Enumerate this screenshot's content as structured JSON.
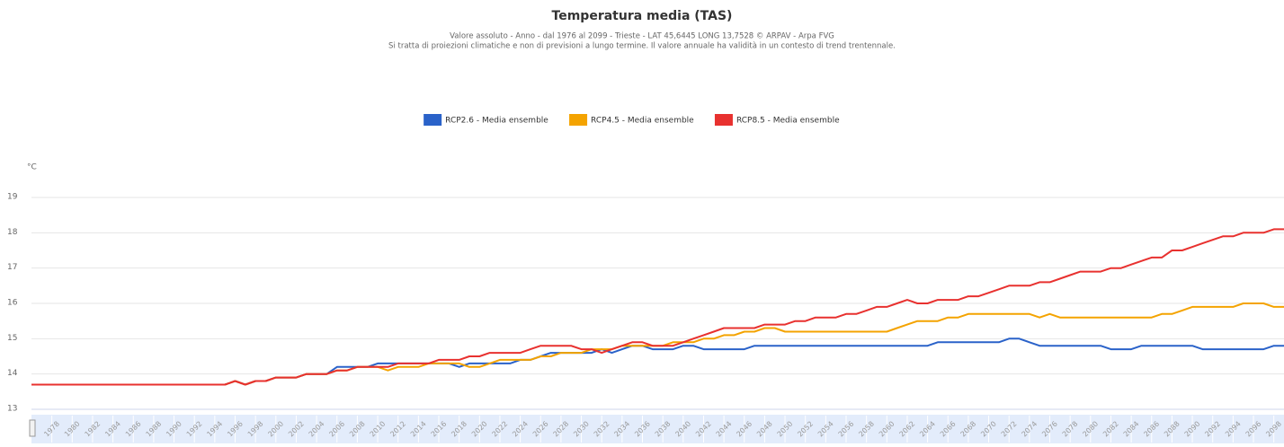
{
  "chart_data": {
    "type": "line",
    "title": "Temperatura media (TAS)",
    "subtitle": [
      "Valore assoluto  -  Anno  -  dal 1976 al 2099 - Trieste - LAT 45,6445 LONG 13,7528    © ARPAV - Arpa FVG",
      "Si tratta di proiezioni climatiche e non di previsioni a lungo termine. Il valore annuale ha validità in un contesto di trend trentennale."
    ],
    "y_label": "°C",
    "x": [
      1976,
      1977,
      1978,
      1979,
      1980,
      1981,
      1982,
      1983,
      1984,
      1985,
      1986,
      1987,
      1988,
      1989,
      1990,
      1991,
      1992,
      1993,
      1994,
      1995,
      1996,
      1997,
      1998,
      1999,
      2000,
      2001,
      2002,
      2003,
      2004,
      2005,
      2006,
      2007,
      2008,
      2009,
      2010,
      2011,
      2012,
      2013,
      2014,
      2015,
      2016,
      2017,
      2018,
      2019,
      2020,
      2021,
      2022,
      2023,
      2024,
      2025,
      2026,
      2027,
      2028,
      2029,
      2030,
      2031,
      2032,
      2033,
      2034,
      2035,
      2036,
      2037,
      2038,
      2039,
      2040,
      2041,
      2042,
      2043,
      2044,
      2045,
      2046,
      2047,
      2048,
      2049,
      2050,
      2051,
      2052,
      2053,
      2054,
      2055,
      2056,
      2057,
      2058,
      2059,
      2060,
      2061,
      2062,
      2063,
      2064,
      2065,
      2066,
      2067,
      2068,
      2069,
      2070,
      2071,
      2072,
      2073,
      2074,
      2075,
      2076,
      2077,
      2078,
      2079,
      2080,
      2081,
      2082,
      2083,
      2084,
      2085,
      2086,
      2087,
      2088,
      2089,
      2090,
      2091,
      2092,
      2093,
      2094,
      2095,
      2096,
      2097,
      2098,
      2099
    ],
    "series": [
      {
        "name": "RCP2.6 - Media ensemble",
        "color": "#2a62c9",
        "values": [
          13.7,
          13.7,
          13.7,
          13.7,
          13.7,
          13.7,
          13.7,
          13.7,
          13.7,
          13.7,
          13.7,
          13.7,
          13.7,
          13.7,
          13.7,
          13.7,
          13.7,
          13.7,
          13.7,
          13.7,
          13.8,
          13.7,
          13.8,
          13.8,
          13.9,
          13.9,
          13.9,
          14.0,
          14.0,
          14.0,
          14.2,
          14.2,
          14.2,
          14.2,
          14.3,
          14.3,
          14.3,
          14.3,
          14.3,
          14.3,
          14.3,
          14.3,
          14.2,
          14.3,
          14.3,
          14.3,
          14.3,
          14.3,
          14.4,
          14.4,
          14.5,
          14.6,
          14.6,
          14.6,
          14.6,
          14.6,
          14.7,
          14.6,
          14.7,
          14.8,
          14.8,
          14.7,
          14.7,
          14.7,
          14.8,
          14.8,
          14.7,
          14.7,
          14.7,
          14.7,
          14.7,
          14.8,
          14.8,
          14.8,
          14.8,
          14.8,
          14.8,
          14.8,
          14.8,
          14.8,
          14.8,
          14.8,
          14.8,
          14.8,
          14.8,
          14.8,
          14.8,
          14.8,
          14.8,
          14.9,
          14.9,
          14.9,
          14.9,
          14.9,
          14.9,
          14.9,
          15.0,
          15.0,
          14.9,
          14.8,
          14.8,
          14.8,
          14.8,
          14.8,
          14.8,
          14.8,
          14.7,
          14.7,
          14.7,
          14.8,
          14.8,
          14.8,
          14.8,
          14.8,
          14.8,
          14.7,
          14.7,
          14.7,
          14.7,
          14.7,
          14.7,
          14.7,
          14.8,
          14.8
        ]
      },
      {
        "name": "RCP4.5 - Media ensemble",
        "color": "#f4a300",
        "values": [
          13.7,
          13.7,
          13.7,
          13.7,
          13.7,
          13.7,
          13.7,
          13.7,
          13.7,
          13.7,
          13.7,
          13.7,
          13.7,
          13.7,
          13.7,
          13.7,
          13.7,
          13.7,
          13.7,
          13.7,
          13.8,
          13.7,
          13.8,
          13.8,
          13.9,
          13.9,
          13.9,
          14.0,
          14.0,
          14.0,
          14.1,
          14.1,
          14.2,
          14.2,
          14.2,
          14.1,
          14.2,
          14.2,
          14.2,
          14.3,
          14.3,
          14.3,
          14.3,
          14.2,
          14.2,
          14.3,
          14.4,
          14.4,
          14.4,
          14.4,
          14.5,
          14.5,
          14.6,
          14.6,
          14.6,
          14.7,
          14.7,
          14.7,
          14.8,
          14.8,
          14.8,
          14.8,
          14.8,
          14.9,
          14.9,
          14.9,
          15.0,
          15.0,
          15.1,
          15.1,
          15.2,
          15.2,
          15.3,
          15.3,
          15.2,
          15.2,
          15.2,
          15.2,
          15.2,
          15.2,
          15.2,
          15.2,
          15.2,
          15.2,
          15.2,
          15.3,
          15.4,
          15.5,
          15.5,
          15.5,
          15.6,
          15.6,
          15.7,
          15.7,
          15.7,
          15.7,
          15.7,
          15.7,
          15.7,
          15.6,
          15.7,
          15.6,
          15.6,
          15.6,
          15.6,
          15.6,
          15.6,
          15.6,
          15.6,
          15.6,
          15.6,
          15.7,
          15.7,
          15.8,
          15.9,
          15.9,
          15.9,
          15.9,
          15.9,
          16.0,
          16.0,
          16.0,
          15.9,
          15.9
        ]
      },
      {
        "name": "RCP8.5 - Media ensemble",
        "color": "#e8312f",
        "values": [
          13.7,
          13.7,
          13.7,
          13.7,
          13.7,
          13.7,
          13.7,
          13.7,
          13.7,
          13.7,
          13.7,
          13.7,
          13.7,
          13.7,
          13.7,
          13.7,
          13.7,
          13.7,
          13.7,
          13.7,
          13.8,
          13.7,
          13.8,
          13.8,
          13.9,
          13.9,
          13.9,
          14.0,
          14.0,
          14.0,
          14.1,
          14.1,
          14.2,
          14.2,
          14.2,
          14.2,
          14.3,
          14.3,
          14.3,
          14.3,
          14.4,
          14.4,
          14.4,
          14.5,
          14.5,
          14.6,
          14.6,
          14.6,
          14.6,
          14.7,
          14.8,
          14.8,
          14.8,
          14.8,
          14.7,
          14.7,
          14.6,
          14.7,
          14.8,
          14.9,
          14.9,
          14.8,
          14.8,
          14.8,
          14.9,
          15.0,
          15.1,
          15.2,
          15.3,
          15.3,
          15.3,
          15.3,
          15.4,
          15.4,
          15.4,
          15.5,
          15.5,
          15.6,
          15.6,
          15.6,
          15.7,
          15.7,
          15.8,
          15.9,
          15.9,
          16.0,
          16.1,
          16.0,
          16.0,
          16.1,
          16.1,
          16.1,
          16.2,
          16.2,
          16.3,
          16.4,
          16.5,
          16.5,
          16.5,
          16.6,
          16.6,
          16.7,
          16.8,
          16.9,
          16.9,
          16.9,
          17.0,
          17.0,
          17.1,
          17.2,
          17.3,
          17.3,
          17.5,
          17.5,
          17.6,
          17.7,
          17.8,
          17.9,
          17.9,
          18.0,
          18.0,
          18.0,
          18.1,
          18.1
        ]
      }
    ],
    "xlim": [
      1976,
      2099
    ],
    "xticks": [
      1978,
      1980,
      1982,
      1984,
      1986,
      1988,
      1990,
      1992,
      1994,
      1996,
      1998,
      2000,
      2002,
      2004,
      2006,
      2008,
      2010,
      2012,
      2014,
      2016,
      2018,
      2020,
      2022,
      2024,
      2026,
      2028,
      2030,
      2032,
      2034,
      2036,
      2038,
      2040,
      2042,
      2044,
      2046,
      2048,
      2050,
      2052,
      2054,
      2056,
      2058,
      2060,
      2062,
      2064,
      2066,
      2068,
      2070,
      2072,
      2074,
      2076,
      2078,
      2080,
      2082,
      2084,
      2086,
      2088,
      2090,
      2092,
      2094,
      2096,
      2098
    ],
    "ylim": [
      13,
      19
    ],
    "yticks": [
      13,
      14,
      15,
      16,
      17,
      18,
      19
    ],
    "grid": true,
    "legend": "top"
  }
}
